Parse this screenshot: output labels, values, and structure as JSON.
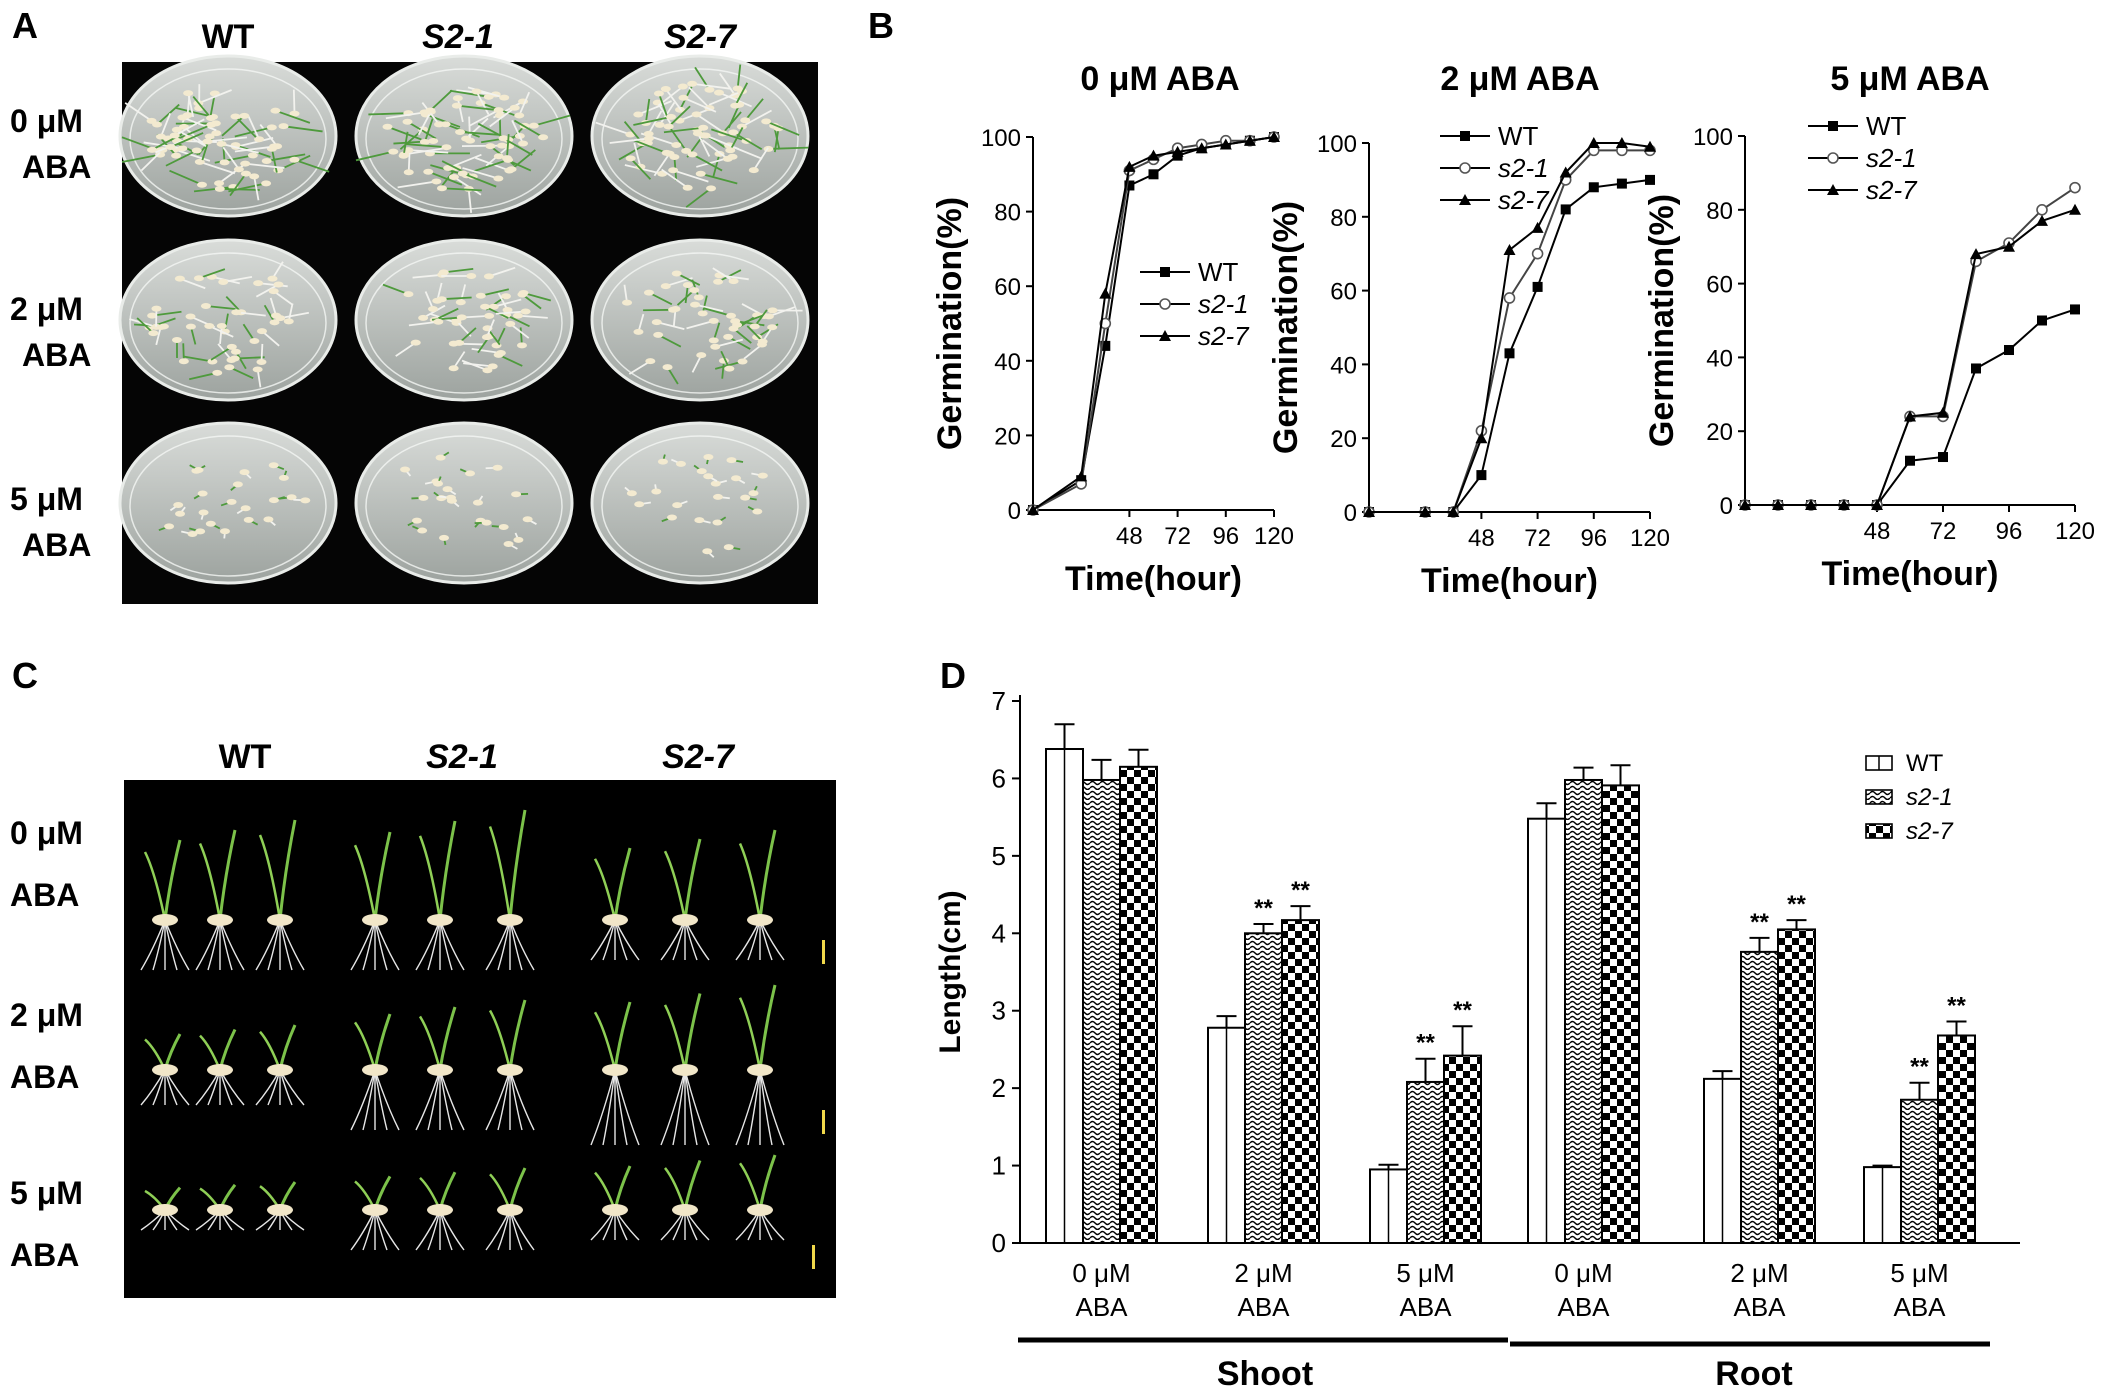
{
  "panels": {
    "A": {
      "letter": "A",
      "col_labels": [
        "WT",
        "S2-1",
        "S2-7"
      ],
      "row_labels": [
        [
          "0 μM",
          "ABA"
        ],
        [
          "2 μM",
          "ABA"
        ],
        [
          "5 μM",
          "ABA"
        ]
      ]
    },
    "C": {
      "letter": "C",
      "col_labels": [
        "WT",
        "S2-1",
        "S2-7"
      ],
      "row_labels": [
        [
          "0 μM",
          "ABA"
        ],
        [
          "2 μM",
          "ABA"
        ],
        [
          "5 μM",
          "ABA"
        ]
      ]
    },
    "B": {
      "letter": "B"
    },
    "D": {
      "letter": "D"
    }
  },
  "chart_data": [
    {
      "type": "line",
      "panel": "B",
      "title": "0 μM ABA",
      "xlabel": "Time(hour)",
      "ylabel": "Germination(%)",
      "xlim": [
        0,
        120
      ],
      "ylim": [
        0,
        100
      ],
      "xticks": [
        48,
        72,
        96,
        120
      ],
      "yticks": [
        0,
        20,
        40,
        60,
        80,
        100
      ],
      "legend_position": "center-right",
      "series": [
        {
          "name": "WT",
          "marker": "square",
          "x": [
            0,
            24,
            36,
            48,
            60,
            72,
            84,
            96,
            108,
            120
          ],
          "y": [
            0,
            8,
            44,
            87,
            90,
            95,
            97,
            98,
            99,
            100
          ]
        },
        {
          "name": "s2-1",
          "marker": "circle",
          "x": [
            0,
            24,
            36,
            48,
            60,
            72,
            84,
            96,
            108,
            120
          ],
          "y": [
            0,
            7,
            50,
            91,
            94,
            97,
            98,
            99,
            99,
            100
          ]
        },
        {
          "name": "s2-7",
          "marker": "triangle",
          "x": [
            0,
            24,
            36,
            48,
            60,
            72,
            84,
            96,
            108,
            120
          ],
          "y": [
            0,
            9,
            58,
            92,
            95,
            96,
            97,
            98,
            99,
            100
          ]
        }
      ]
    },
    {
      "type": "line",
      "panel": "B",
      "title": "2 μM ABA",
      "xlabel": "Time(hour)",
      "ylabel": "Germination(%)",
      "xlim": [
        0,
        120
      ],
      "ylim": [
        0,
        100
      ],
      "xticks": [
        48,
        72,
        96,
        120
      ],
      "yticks": [
        0,
        20,
        40,
        60,
        80,
        100
      ],
      "legend_position": "top-left",
      "series": [
        {
          "name": "WT",
          "marker": "square",
          "x": [
            0,
            24,
            36,
            48,
            60,
            72,
            84,
            96,
            108,
            120
          ],
          "y": [
            0,
            0,
            0,
            10,
            43,
            61,
            82,
            88,
            89,
            90
          ]
        },
        {
          "name": "s2-1",
          "marker": "circle",
          "x": [
            0,
            24,
            36,
            48,
            60,
            72,
            84,
            96,
            108,
            120
          ],
          "y": [
            0,
            0,
            0,
            22,
            58,
            70,
            90,
            98,
            98,
            98
          ]
        },
        {
          "name": "s2-7",
          "marker": "triangle",
          "x": [
            0,
            24,
            36,
            48,
            60,
            72,
            84,
            96,
            108,
            120
          ],
          "y": [
            0,
            0,
            0,
            20,
            71,
            77,
            92,
            100,
            100,
            99
          ]
        }
      ]
    },
    {
      "type": "line",
      "panel": "B",
      "title": "5 μM ABA",
      "xlabel": "Time(hour)",
      "ylabel": "Germination(%)",
      "xlim": [
        0,
        120
      ],
      "ylim": [
        0,
        100
      ],
      "xticks": [
        48,
        72,
        96,
        120
      ],
      "yticks": [
        0,
        20,
        40,
        60,
        80,
        100
      ],
      "legend_position": "top-left",
      "series": [
        {
          "name": "WT",
          "marker": "square",
          "x": [
            0,
            12,
            24,
            36,
            48,
            60,
            72,
            84,
            96,
            108,
            120
          ],
          "y": [
            0,
            0,
            0,
            0,
            0,
            12,
            13,
            37,
            42,
            50,
            53
          ]
        },
        {
          "name": "s2-1",
          "marker": "circle",
          "x": [
            0,
            12,
            24,
            36,
            48,
            60,
            72,
            84,
            96,
            108,
            120
          ],
          "y": [
            0,
            0,
            0,
            0,
            0,
            24,
            24,
            66,
            71,
            80,
            86
          ]
        },
        {
          "name": "s2-7",
          "marker": "triangle",
          "x": [
            0,
            12,
            24,
            36,
            48,
            60,
            72,
            84,
            96,
            108,
            120
          ],
          "y": [
            0,
            0,
            0,
            0,
            0,
            24,
            25,
            68,
            70,
            77,
            80
          ]
        }
      ]
    },
    {
      "type": "bar",
      "panel": "D",
      "ylabel": "Length(cm)",
      "ylim": [
        0,
        7
      ],
      "yticks": [
        0,
        1,
        2,
        3,
        4,
        5,
        6,
        7
      ],
      "legend_position": "top-right",
      "groups": [
        {
          "label": [
            "0 μM",
            "ABA"
          ],
          "tissue": "Shoot"
        },
        {
          "label": [
            "2 μM",
            "ABA"
          ],
          "tissue": "Shoot"
        },
        {
          "label": [
            "5 μM",
            "ABA"
          ],
          "tissue": "Shoot"
        },
        {
          "label": [
            "0 μM",
            "ABA"
          ],
          "tissue": "Root"
        },
        {
          "label": [
            "2 μM",
            "ABA"
          ],
          "tissue": "Root"
        },
        {
          "label": [
            "5 μM",
            "ABA"
          ],
          "tissue": "Root"
        }
      ],
      "tissue_labels": [
        "Shoot",
        "Root"
      ],
      "significance_mark": "**",
      "series": [
        {
          "name": "WT",
          "pattern": "vertical",
          "values": [
            6.38,
            2.78,
            0.95,
            5.48,
            2.12,
            0.98
          ],
          "errors": [
            0.32,
            0.15,
            0.06,
            0.2,
            0.1,
            0.02
          ],
          "sig": [
            false,
            false,
            false,
            false,
            false,
            false
          ]
        },
        {
          "name": "s2-1",
          "pattern": "wave",
          "values": [
            5.98,
            4.0,
            2.08,
            5.98,
            3.76,
            1.85
          ],
          "errors": [
            0.26,
            0.12,
            0.3,
            0.16,
            0.18,
            0.22
          ],
          "sig": [
            false,
            true,
            true,
            false,
            true,
            true
          ]
        },
        {
          "name": "s2-7",
          "pattern": "checker",
          "values": [
            6.15,
            4.17,
            2.42,
            5.91,
            4.05,
            2.68
          ],
          "errors": [
            0.22,
            0.18,
            0.38,
            0.26,
            0.12,
            0.18
          ],
          "sig": [
            false,
            true,
            true,
            false,
            true,
            true
          ]
        }
      ]
    }
  ]
}
